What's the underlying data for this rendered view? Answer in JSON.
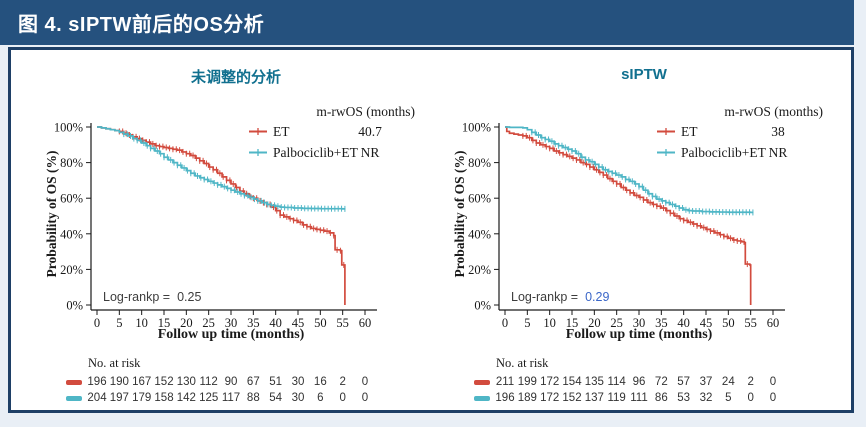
{
  "header": {
    "title": "图 4. sIPTW前后的OS分析"
  },
  "colors": {
    "page_bg": "#e9eff6",
    "header_bg": "#25517E",
    "panel_border": "#1e3f66",
    "panel_title": "#11708f",
    "et": "#d24b3e",
    "palbo": "#4fb6c6",
    "axis_text": "#1a1a1a",
    "logrank_text": "#3d3d3d",
    "pvalue_highlight": "#3a66c8",
    "risk_text": "#333333"
  },
  "chart_data": [
    {
      "type": "line",
      "subtype": "kaplan-meier",
      "title": "未调整的分析",
      "xlabel": "Follow up time (months)",
      "ylabel": "Probability of OS (%)",
      "xlim": [
        0,
        60
      ],
      "ylim": [
        0,
        100
      ],
      "xticks": [
        0,
        5,
        10,
        15,
        20,
        25,
        30,
        35,
        40,
        45,
        50,
        55,
        60
      ],
      "ytick_labels": [
        "0%",
        "20%",
        "40%",
        "60%",
        "80%",
        "100%"
      ],
      "grid": false,
      "legend_position": "top-right",
      "legend_header": "m-rwOS (months)",
      "logrank_label": "Log-rankp =",
      "logrank_value": "0.25",
      "logrank_value_highlight": false,
      "risk_title": "No. at risk",
      "series": [
        {
          "name": "ET",
          "color_key": "et",
          "m_rwos": "40.7",
          "censor_range": [
            5,
            55.45
          ],
          "points": [
            [
              0,
              100
            ],
            [
              1,
              99.5
            ],
            [
              2,
              99
            ],
            [
              3,
              98.5
            ],
            [
              4,
              98
            ],
            [
              5,
              97.5
            ],
            [
              6,
              96.5
            ],
            [
              7,
              95.5
            ],
            [
              8,
              94.5
            ],
            [
              9,
              93.5
            ],
            [
              10,
              92.5
            ],
            [
              11,
              91.5
            ],
            [
              12,
              90.5
            ],
            [
              13,
              89.5
            ],
            [
              14,
              89
            ],
            [
              15,
              88.5
            ],
            [
              16,
              88
            ],
            [
              17,
              87.5
            ],
            [
              18,
              87
            ],
            [
              19,
              86
            ],
            [
              20,
              85
            ],
            [
              21,
              84
            ],
            [
              22,
              82.5
            ],
            [
              23,
              81
            ],
            [
              24,
              79.5
            ],
            [
              25,
              77.5
            ],
            [
              26,
              76
            ],
            [
              27,
              74
            ],
            [
              28,
              72
            ],
            [
              29,
              70
            ],
            [
              30,
              68
            ],
            [
              31,
              66
            ],
            [
              32,
              64
            ],
            [
              33,
              62.5
            ],
            [
              34,
              61
            ],
            [
              35,
              60
            ],
            [
              36,
              58.5
            ],
            [
              37,
              57.5
            ],
            [
              38,
              56.5
            ],
            [
              39,
              55
            ],
            [
              40,
              53
            ],
            [
              41,
              50.5
            ],
            [
              42,
              49.5
            ],
            [
              43,
              48.5
            ],
            [
              44,
              47.5
            ],
            [
              45,
              46.5
            ],
            [
              46,
              45
            ],
            [
              47,
              44
            ],
            [
              48,
              43
            ],
            [
              49,
              42.5
            ],
            [
              50,
              42
            ],
            [
              51,
              41.5
            ],
            [
              52,
              40.5
            ],
            [
              53,
              39
            ],
            [
              53.3,
              31
            ],
            [
              54.5,
              30.5
            ],
            [
              54.8,
              22.5
            ],
            [
              55.4,
              22.5
            ],
            [
              55.5,
              0
            ]
          ]
        },
        {
          "name": "Palbociclib+ET",
          "color_key": "palbo",
          "m_rwos": "NR",
          "censor_range": [
            6,
            55.5
          ],
          "points": [
            [
              0,
              100
            ],
            [
              1,
              99.5
            ],
            [
              2,
              99
            ],
            [
              3,
              98.5
            ],
            [
              4,
              98
            ],
            [
              5,
              97
            ],
            [
              6,
              96
            ],
            [
              7,
              95
            ],
            [
              8,
              93.5
            ],
            [
              9,
              92.5
            ],
            [
              10,
              91
            ],
            [
              11,
              89.5
            ],
            [
              12,
              88
            ],
            [
              13,
              86.5
            ],
            [
              14,
              85
            ],
            [
              15,
              83
            ],
            [
              16,
              81.5
            ],
            [
              17,
              80
            ],
            [
              18,
              78.5
            ],
            [
              19,
              77
            ],
            [
              20,
              75.5
            ],
            [
              21,
              74
            ],
            [
              22,
              72.5
            ],
            [
              23,
              71.5
            ],
            [
              24,
              70.5
            ],
            [
              25,
              69.5
            ],
            [
              26,
              68.5
            ],
            [
              27,
              67.5
            ],
            [
              28,
              66.5
            ],
            [
              29,
              65.5
            ],
            [
              30,
              64.5
            ],
            [
              31,
              63.5
            ],
            [
              32,
              62.5
            ],
            [
              33,
              61.5
            ],
            [
              34,
              60.5
            ],
            [
              35,
              59.5
            ],
            [
              36,
              58.5
            ],
            [
              37,
              57.5
            ],
            [
              38,
              56.5
            ],
            [
              39,
              56
            ],
            [
              40,
              55.5
            ],
            [
              41,
              55
            ],
            [
              42,
              54.8
            ],
            [
              44,
              54.5
            ],
            [
              46,
              54.3
            ],
            [
              48,
              54.2
            ],
            [
              50,
              54.1
            ],
            [
              55,
              54
            ],
            [
              55.6,
              54
            ]
          ]
        }
      ],
      "risk": [
        {
          "series": "ET",
          "color_key": "et",
          "values": [
            196,
            190,
            167,
            152,
            130,
            112,
            90,
            67,
            51,
            30,
            16,
            2,
            0
          ]
        },
        {
          "series": "Palbociclib+ET",
          "color_key": "palbo",
          "values": [
            204,
            197,
            179,
            158,
            142,
            125,
            117,
            88,
            54,
            30,
            6,
            0,
            0
          ]
        }
      ]
    },
    {
      "type": "line",
      "subtype": "kaplan-meier",
      "title": "sIPTW",
      "xlabel": "Follow up time (months)",
      "ylabel": "Probability of OS (%)",
      "xlim": [
        0,
        60
      ],
      "ylim": [
        0,
        100
      ],
      "xticks": [
        0,
        5,
        10,
        15,
        20,
        25,
        30,
        35,
        40,
        45,
        50,
        55,
        60
      ],
      "ytick_labels": [
        "0%",
        "20%",
        "40%",
        "60%",
        "80%",
        "100%"
      ],
      "grid": false,
      "legend_position": "top-right",
      "legend_header": "m-rwOS (months)",
      "logrank_label": "Log-rankp =",
      "logrank_value": "0.29",
      "logrank_value_highlight": true,
      "risk_title": "No. at risk",
      "series": [
        {
          "name": "ET",
          "color_key": "et",
          "m_rwos": "38",
          "censor_range": [
            4,
            54.9
          ],
          "points": [
            [
              0,
              100
            ],
            [
              0.4,
              97.5
            ],
            [
              1,
              96.5
            ],
            [
              2,
              96
            ],
            [
              3,
              95.5
            ],
            [
              4,
              95
            ],
            [
              5,
              94
            ],
            [
              6,
              92.5
            ],
            [
              7,
              91
            ],
            [
              8,
              90
            ],
            [
              9,
              89
            ],
            [
              10,
              88
            ],
            [
              11,
              86.5
            ],
            [
              12,
              85.5
            ],
            [
              13,
              84.5
            ],
            [
              14,
              83.5
            ],
            [
              15,
              82.5
            ],
            [
              16,
              81.5
            ],
            [
              17,
              80
            ],
            [
              18,
              79
            ],
            [
              19,
              77.5
            ],
            [
              20,
              76
            ],
            [
              21,
              74.5
            ],
            [
              22,
              73
            ],
            [
              23,
              71
            ],
            [
              24,
              69.5
            ],
            [
              25,
              68
            ],
            [
              26,
              66
            ],
            [
              27,
              64.5
            ],
            [
              28,
              63
            ],
            [
              29,
              61.5
            ],
            [
              30,
              60.5
            ],
            [
              31,
              59
            ],
            [
              32,
              57.5
            ],
            [
              33,
              56.5
            ],
            [
              34,
              55.5
            ],
            [
              35,
              54.5
            ],
            [
              36,
              53
            ],
            [
              37,
              51.5
            ],
            [
              38,
              50
            ],
            [
              39,
              48.5
            ],
            [
              40,
              47.5
            ],
            [
              41,
              46.5
            ],
            [
              42,
              45.5
            ],
            [
              43,
              44.5
            ],
            [
              44,
              43.5
            ],
            [
              45,
              42.5
            ],
            [
              46,
              41.5
            ],
            [
              47,
              40.5
            ],
            [
              48,
              39.5
            ],
            [
              49,
              38.5
            ],
            [
              50,
              37.5
            ],
            [
              51,
              36.5
            ],
            [
              52,
              36
            ],
            [
              53,
              35.5
            ],
            [
              53.6,
              35
            ],
            [
              53.8,
              23
            ],
            [
              54.8,
              22.5
            ],
            [
              55,
              0
            ]
          ]
        },
        {
          "name": "Palbociclib+ET",
          "color_key": "palbo",
          "m_rwos": "NR",
          "censor_range": [
            6,
            55.5
          ],
          "points": [
            [
              0,
              100
            ],
            [
              1,
              99.8
            ],
            [
              4,
              99.5
            ],
            [
              5,
              98.5
            ],
            [
              6,
              97
            ],
            [
              7,
              95.5
            ],
            [
              8,
              94
            ],
            [
              9,
              93
            ],
            [
              10,
              92
            ],
            [
              11,
              90.5
            ],
            [
              12,
              89.5
            ],
            [
              13,
              88.5
            ],
            [
              14,
              87.5
            ],
            [
              15,
              86.5
            ],
            [
              16,
              85
            ],
            [
              17,
              83
            ],
            [
              18,
              81.5
            ],
            [
              19,
              80.5
            ],
            [
              20,
              79
            ],
            [
              21,
              77.5
            ],
            [
              22,
              76
            ],
            [
              23,
              75
            ],
            [
              24,
              74
            ],
            [
              25,
              73
            ],
            [
              26,
              72
            ],
            [
              27,
              70.5
            ],
            [
              28,
              69.5
            ],
            [
              29,
              68
            ],
            [
              30,
              66.5
            ],
            [
              31,
              64.5
            ],
            [
              32,
              62.5
            ],
            [
              33,
              61
            ],
            [
              34,
              59.5
            ],
            [
              35,
              58.5
            ],
            [
              36,
              57.5
            ],
            [
              37,
              56.5
            ],
            [
              38,
              55.5
            ],
            [
              39,
              54.5
            ],
            [
              40,
              53.5
            ],
            [
              41,
              53
            ],
            [
              42,
              52.8
            ],
            [
              44,
              52.5
            ],
            [
              46,
              52.3
            ],
            [
              48,
              52.2
            ],
            [
              50,
              52.1
            ],
            [
              55,
              52
            ],
            [
              55.6,
              52
            ]
          ]
        }
      ],
      "risk": [
        {
          "series": "ET",
          "color_key": "et",
          "values": [
            211,
            199,
            172,
            154,
            135,
            114,
            96,
            72,
            57,
            37,
            24,
            2,
            0
          ]
        },
        {
          "series": "Palbociclib+ET",
          "color_key": "palbo",
          "values": [
            196,
            189,
            172,
            152,
            137,
            119,
            111,
            86,
            53,
            32,
            5,
            0,
            0
          ]
        }
      ]
    }
  ]
}
